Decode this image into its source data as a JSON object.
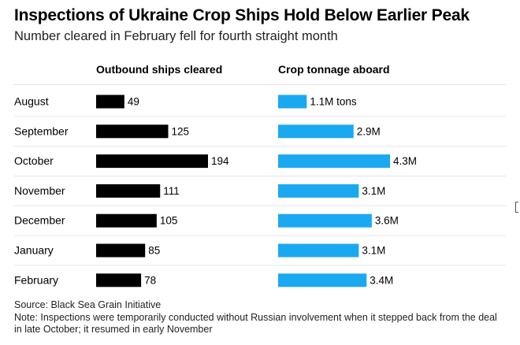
{
  "chart_data": {
    "type": "bar",
    "title": "Inspections of Ukraine Crop Ships Hold Below Earlier Peak",
    "subtitle": "Number cleared in February fell for fourth straight month",
    "categories": [
      "August",
      "September",
      "October",
      "November",
      "December",
      "January",
      "February"
    ],
    "series": [
      {
        "name": "Outbound ships cleared",
        "values": [
          49,
          125,
          194,
          111,
          105,
          85,
          78
        ],
        "labels": [
          "49",
          "125",
          "194",
          "111",
          "105",
          "85",
          "78"
        ],
        "color": "#000000",
        "xlim": [
          0,
          194
        ]
      },
      {
        "name": "Crop tonnage aboard",
        "values": [
          1.1,
          2.9,
          4.3,
          3.1,
          3.6,
          3.1,
          3.4
        ],
        "labels": [
          "1.1M tons",
          "2.9M",
          "4.3M",
          "3.1M",
          "3.6M",
          "3.1M",
          "3.4M"
        ],
        "color": "#1aa9f0",
        "xlim": [
          0,
          4.3
        ]
      }
    ],
    "grid": false,
    "legend": "none",
    "source": "Source: Black Sea Grain Initiative",
    "note": "Note: Inspections were temporarily conducted without Russian involvement when it stepped back from the deal in late October; it resumed in early November"
  }
}
